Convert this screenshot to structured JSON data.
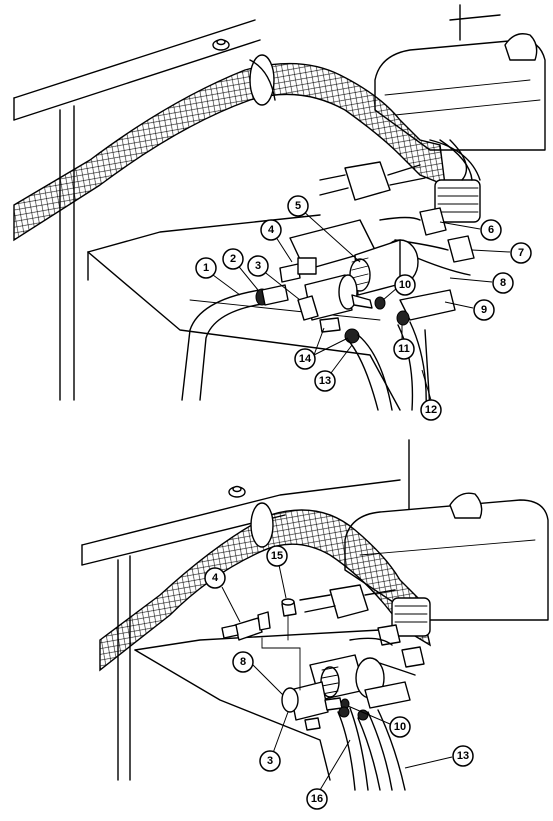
{
  "figure": {
    "top_view": {
      "callouts": [
        {
          "id": "c1",
          "label": "1"
        },
        {
          "id": "c2",
          "label": "2"
        },
        {
          "id": "c3",
          "label": "3"
        },
        {
          "id": "c4",
          "label": "4"
        },
        {
          "id": "c5",
          "label": "5"
        },
        {
          "id": "c6",
          "label": "6"
        },
        {
          "id": "c7",
          "label": "7"
        },
        {
          "id": "c8",
          "label": "8"
        },
        {
          "id": "c9",
          "label": "9"
        },
        {
          "id": "c10",
          "label": "10"
        },
        {
          "id": "c11",
          "label": "11"
        },
        {
          "id": "c12",
          "label": "12"
        },
        {
          "id": "c13",
          "label": "13"
        },
        {
          "id": "c14",
          "label": "14"
        }
      ]
    },
    "bottom_view": {
      "callouts": [
        {
          "id": "b4",
          "label": "4"
        },
        {
          "id": "b15",
          "label": "15"
        },
        {
          "id": "b8",
          "label": "8"
        },
        {
          "id": "b10",
          "label": "10"
        },
        {
          "id": "b3",
          "label": "3"
        },
        {
          "id": "b13",
          "label": "13"
        },
        {
          "id": "b16",
          "label": "16"
        }
      ]
    }
  }
}
